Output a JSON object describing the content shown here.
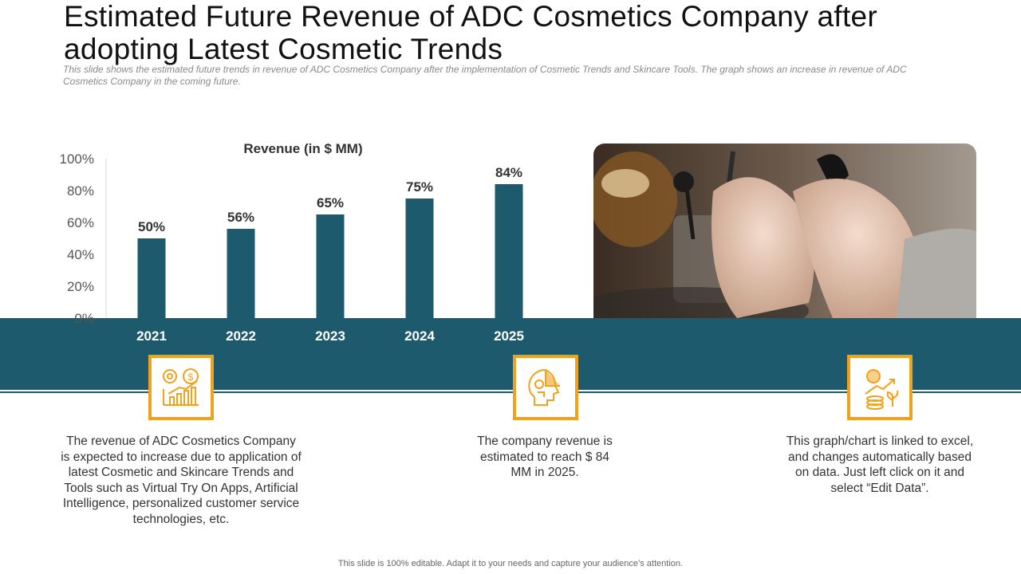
{
  "title": "Estimated Future Revenue of ADC Cosmetics Company after adopting Latest Cosmetic Trends",
  "subtitle": "This slide shows the estimated future trends in revenue of ADC Cosmetics Company after the implementation of Cosmetic Trends and Skincare Tools. The graph shows an increase in revenue of ADC Cosmetics Company in the coming future.",
  "colors": {
    "bar": "#1e5a6e",
    "accent": "#f0a21a",
    "band": "#1e5a6e"
  },
  "chart_data": {
    "type": "bar",
    "title": "Revenue (in $ MM)",
    "categories": [
      "2021",
      "2022",
      "2023",
      "2024",
      "2025"
    ],
    "values": [
      50,
      56,
      65,
      75,
      84
    ],
    "data_labels": [
      "50%",
      "56%",
      "65%",
      "75%",
      "84%"
    ],
    "yticks": [
      "0%",
      "20%",
      "40%",
      "60%",
      "80%",
      "100%"
    ],
    "ylim": [
      0,
      100
    ],
    "xlabel": "",
    "ylabel": "",
    "grid": false
  },
  "image": {
    "icon": "hands-makeup-brushes-photo"
  },
  "features": [
    {
      "icon": "growth-chart-money-icon",
      "text": "The revenue of ADC Cosmetics Company is expected to increase due to application of latest Cosmetic and Skincare Trends and Tools such as Virtual Try On Apps, Artificial Intelligence, personalized customer service technologies, etc."
    },
    {
      "icon": "ai-head-icon",
      "text": "The company revenue is estimated to reach $ 84 MM in 2025."
    },
    {
      "icon": "investment-growth-icon",
      "text": "This graph/chart is linked to excel, and changes automatically based on data. Just left click on it and select “Edit Data”."
    }
  ],
  "footer": "This slide is 100% editable. Adapt it to your needs and capture your audience’s attention."
}
